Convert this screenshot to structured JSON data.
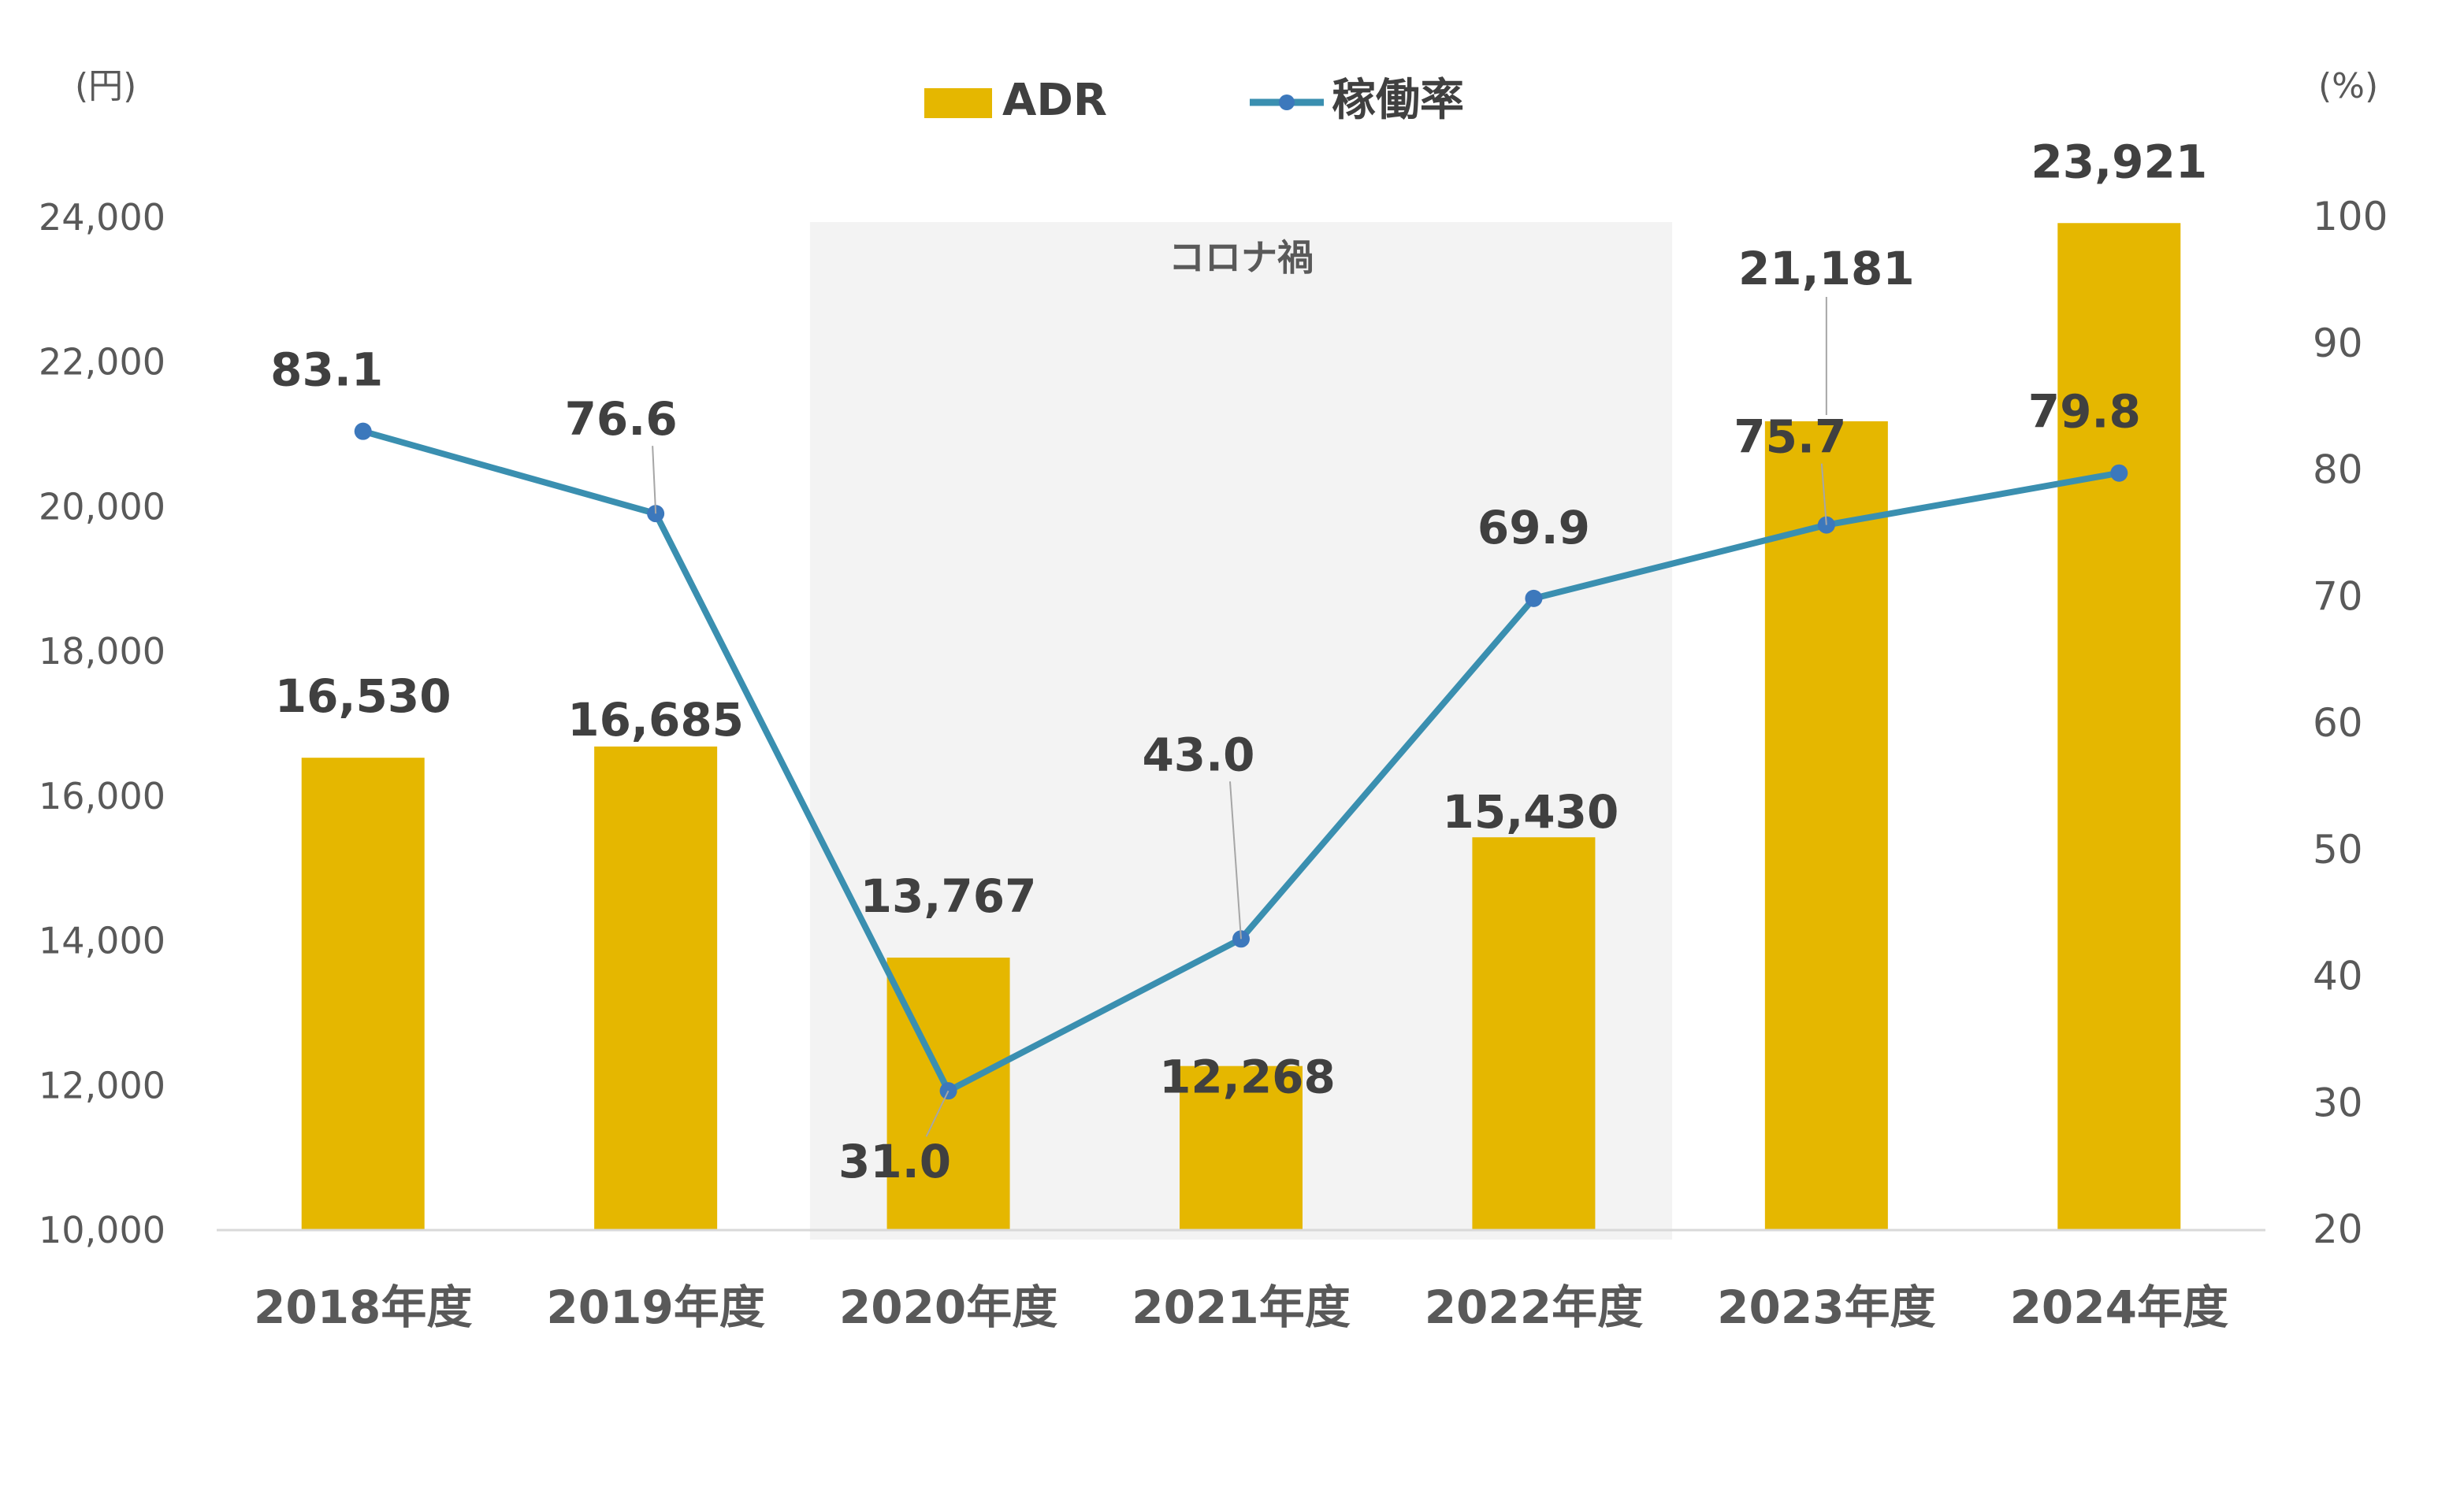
{
  "chart_data": {
    "type": "bar",
    "categories": [
      "2018年度",
      "2019年度",
      "2020年度",
      "2021年度",
      "2022年度",
      "2023年度",
      "2024年度"
    ],
    "series": [
      {
        "name": "ADR",
        "type": "bar",
        "axis": "left",
        "values": [
          16530,
          16685,
          13767,
          12268,
          15430,
          21181,
          23921
        ],
        "labels": [
          "16,530",
          "16,685",
          "13,767",
          "12,268",
          "15,430",
          "21,181",
          "23,921"
        ],
        "color": "#E5B700"
      },
      {
        "name": "稼働率",
        "type": "line",
        "axis": "right",
        "values": [
          83.1,
          76.6,
          31.0,
          43.0,
          69.9,
          75.7,
          79.8
        ],
        "labels": [
          "83.1",
          "76.6",
          "31.0",
          "43.0",
          "69.9",
          "75.7",
          "79.8"
        ],
        "color": "#3A8FB0",
        "marker_color": "#3C78BC"
      }
    ],
    "left_axis": {
      "unit": "(円)",
      "ylim": [
        10000,
        24000
      ],
      "ticks": [
        "10,000",
        "12,000",
        "14,000",
        "16,000",
        "18,000",
        "20,000",
        "22,000",
        "24,000"
      ]
    },
    "right_axis": {
      "unit": "(%)",
      "ylim": [
        20,
        100
      ],
      "ticks": [
        "20",
        "30",
        "40",
        "50",
        "60",
        "70",
        "80",
        "90",
        "100"
      ]
    },
    "shaded_region": {
      "label": "コロナ禍",
      "from_category": "2020年度",
      "to_category": "2022年度",
      "color": "#F3F3F3"
    },
    "legend": {
      "placement": "top-center"
    },
    "grid": false
  }
}
